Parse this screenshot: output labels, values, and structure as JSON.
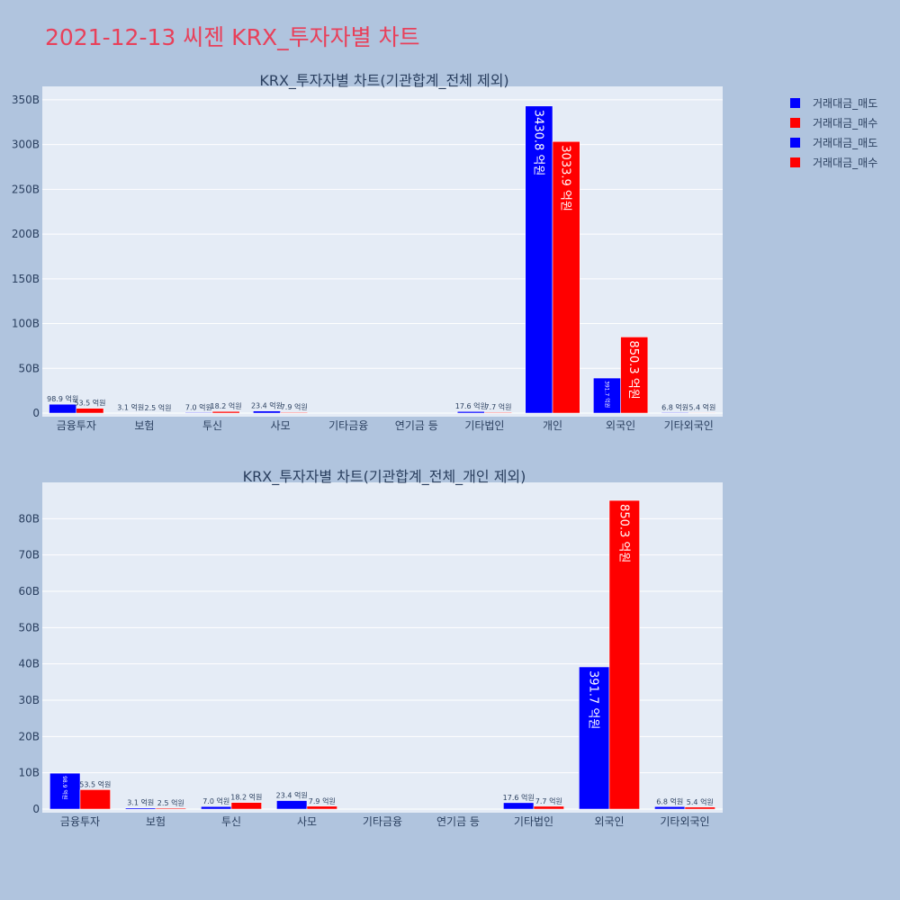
{
  "title": "2021-12-13 씨젠 KRX_투자자별 차트",
  "legend": [
    {
      "name": "거래대금_매도",
      "color": "#0000ff"
    },
    {
      "name": "거래대금_매수",
      "color": "#ff0000"
    },
    {
      "name": "거래대금_매도",
      "color": "#0000ff"
    },
    {
      "name": "거래대금_매수",
      "color": "#ff0000"
    }
  ],
  "chart_data": [
    {
      "type": "bar",
      "title": "KRX_투자자별 차트(기관합계_전체 제외)",
      "categories": [
        "금융투자",
        "보험",
        "투신",
        "사모",
        "기타금융",
        "연기금 등",
        "기타법인",
        "개인",
        "외국인",
        "기타외국인"
      ],
      "ylim": [
        0,
        365
      ],
      "yunit": "B",
      "yticks": [
        0,
        50,
        100,
        150,
        200,
        250,
        300,
        350
      ],
      "grid": true,
      "series": [
        {
          "name": "거래대금_매도",
          "color": "#0000ff",
          "values": [
            9.89,
            0.31,
            0.7,
            2.34,
            0,
            0,
            1.76,
            343.08,
            39.17,
            0.68
          ],
          "labels": [
            "98.9 억원",
            "3.1 억원",
            "7.0 억원",
            "23.4 억원",
            "",
            "",
            "17.6 억원",
            "3430.8 억원",
            "391.7 억원",
            "6.8 억원"
          ]
        },
        {
          "name": "거래대금_매수",
          "color": "#ff0000",
          "values": [
            5.35,
            0.25,
            1.82,
            0.79,
            0,
            0,
            0.77,
            303.39,
            85.03,
            0.54
          ],
          "labels": [
            "53.5 억원",
            "2.5 억원",
            "18.2 억원",
            "7.9 억원",
            "",
            "",
            "7.7 억원",
            "3033.9 억원",
            "850.3 억원",
            "5.4 억원"
          ]
        }
      ]
    },
    {
      "type": "bar",
      "title": "KRX_투자자별 차트(기관합계_전체_개인 제외)",
      "categories": [
        "금융투자",
        "보험",
        "투신",
        "사모",
        "기타금융",
        "연기금 등",
        "기타법인",
        "외국인",
        "기타외국인"
      ],
      "ylim": [
        0,
        90
      ],
      "yunit": "B",
      "yticks": [
        0,
        10,
        20,
        30,
        40,
        50,
        60,
        70,
        80
      ],
      "grid": true,
      "series": [
        {
          "name": "거래대금_매도",
          "color": "#0000ff",
          "values": [
            9.89,
            0.31,
            0.7,
            2.34,
            0,
            0,
            1.76,
            39.17,
            0.68
          ],
          "labels": [
            "98.9 억원",
            "3.1 억원",
            "7.0 억원",
            "23.4 억원",
            "",
            "",
            "17.6 억원",
            "391.7 억원",
            "6.8 억원"
          ]
        },
        {
          "name": "거래대금_매수",
          "color": "#ff0000",
          "values": [
            5.35,
            0.25,
            1.82,
            0.79,
            0,
            0,
            0.77,
            85.03,
            0.54
          ],
          "labels": [
            "53.5 억원",
            "2.5 억원",
            "18.2 억원",
            "7.9 억원",
            "",
            "",
            "7.7 억원",
            "850.3 억원",
            "5.4 억원"
          ]
        }
      ]
    }
  ]
}
